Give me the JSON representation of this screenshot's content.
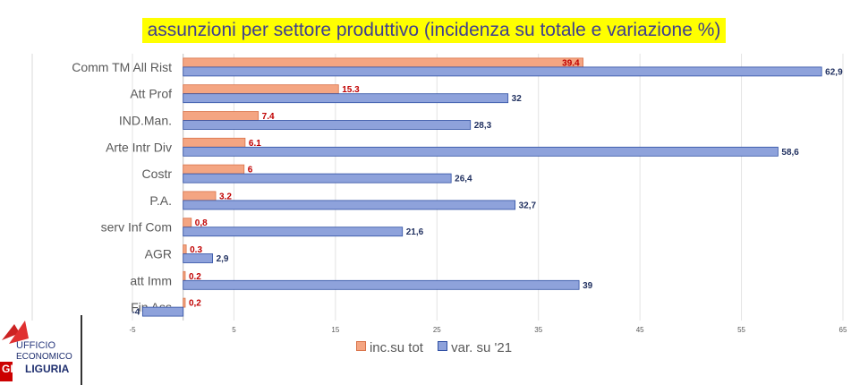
{
  "chart_data": {
    "type": "bar",
    "orientation": "horizontal",
    "title": "assunzioni per settore produttivo (incidenza su totale e variazione %)",
    "categories": [
      "Comm TM All Rist",
      "Att Prof",
      "IND.Man.",
      "Arte Intr Div",
      "Costr",
      "P.A.",
      "serv Inf Com",
      "AGR",
      "att Imm",
      "Fin Ass"
    ],
    "series": [
      {
        "name": "inc.su tot",
        "color": "#f4a582",
        "label_color": "#c00000",
        "values": [
          39.4,
          15.3,
          7.4,
          6.1,
          6,
          3.2,
          0.8,
          0.3,
          0.2,
          0.2
        ],
        "labels": [
          "39.4",
          "15.3",
          "7.4",
          "6.1",
          "6",
          "3.2",
          "0,8",
          "0.3",
          "0.2",
          "0,2"
        ]
      },
      {
        "name": "var. su '21",
        "color": "#8ea2db",
        "label_color": "#1f2f5f",
        "values": [
          62.9,
          32,
          28.3,
          58.6,
          26.4,
          32.7,
          21.6,
          2.9,
          39,
          -4
        ],
        "labels": [
          "62,9",
          "32",
          "28,3",
          "58,6",
          "26,4",
          "32,7",
          "21,6",
          "2,9",
          "39",
          "-4"
        ]
      }
    ],
    "xlim": [
      -5,
      65
    ],
    "xticks": [
      -5,
      5,
      15,
      25,
      35,
      45,
      55,
      65
    ],
    "legend_position": "bottom",
    "grid": true
  },
  "logo": {
    "line1": "UFFICIO",
    "line2": "ECONOMICO",
    "line3": "LIGURIA",
    "prefix": "GIL"
  }
}
